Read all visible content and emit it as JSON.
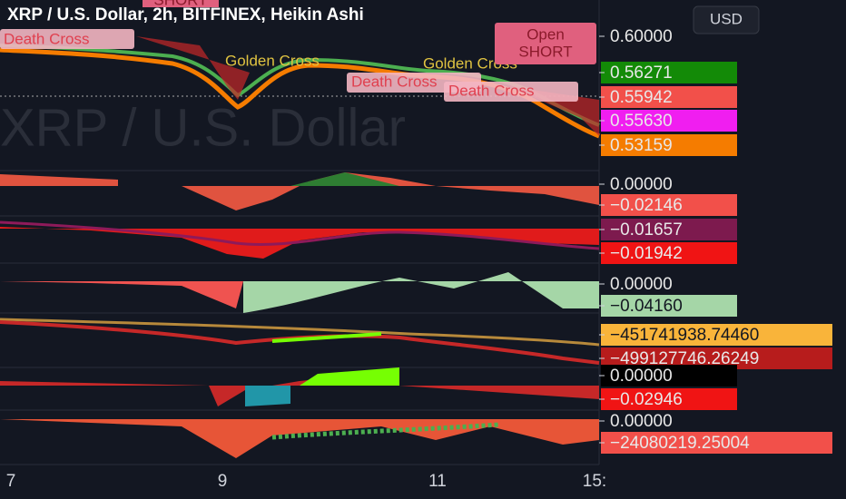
{
  "header": {
    "title": "XRP / U.S. Dollar, 2h, BITFINEX, Heikin Ashi",
    "currency": "USD",
    "watermark": "XRP / U.S. Dollar"
  },
  "annotations": [
    "SHORT",
    "Death Cross",
    "Golden Cross",
    "Golden Cross",
    "Death Cross",
    "Death Cross",
    "Open",
    "SHORT"
  ],
  "price_labels": {
    "pane1": [
      "0.60000",
      "0.56271",
      "0.55942",
      "0.55630",
      "0.53159"
    ],
    "pane2": [
      "0.00000",
      "−0.02146"
    ],
    "pane3": [
      "−0.01657",
      "−0.01942"
    ],
    "pane4": [
      "0.00000",
      "−0.04160"
    ],
    "pane5": [
      "−451741938.74460",
      "−499127746.26249"
    ],
    "pane6": [
      "0.00000",
      "−0.02946"
    ],
    "pane7": [
      "0.00000",
      "−24080219.25004"
    ]
  },
  "time_axis": [
    "7",
    "9",
    "11",
    "15:"
  ]
}
